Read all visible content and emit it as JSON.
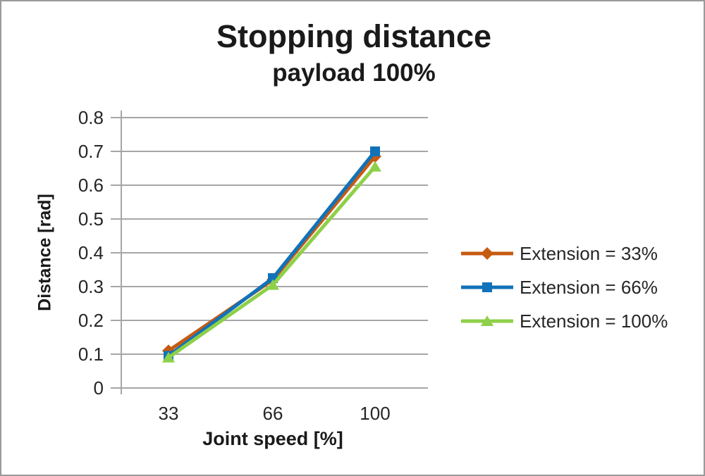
{
  "window": {
    "background": "#ffffff",
    "border_color": "#9a9a9a"
  },
  "chart_data": {
    "type": "line",
    "title": "Stopping distance",
    "subtitle": "payload 100%",
    "xlabel": "Joint speed [%]",
    "ylabel": "Distance [rad]",
    "categories": [
      "33",
      "66",
      "100"
    ],
    "series": [
      {
        "name": "Extension = 33%",
        "color": "#C65A11",
        "marker": "diamond",
        "values": [
          0.11,
          0.32,
          0.685
        ]
      },
      {
        "name": "Extension = 66%",
        "color": "#1272B9",
        "marker": "square",
        "values": [
          0.095,
          0.325,
          0.7
        ]
      },
      {
        "name": "Extension = 100%",
        "color": "#8ED049",
        "marker": "triangle",
        "values": [
          0.09,
          0.305,
          0.655
        ]
      }
    ],
    "ylim": [
      0,
      0.8
    ],
    "ytick_step": 0.1,
    "yticks": [
      "0",
      "0.1",
      "0.2",
      "0.3",
      "0.4",
      "0.5",
      "0.6",
      "0.7",
      "0.8"
    ],
    "grid": true,
    "gridline_color": "#a6a6a6",
    "axis_color": "#a6a6a6",
    "legend_position": "right"
  }
}
